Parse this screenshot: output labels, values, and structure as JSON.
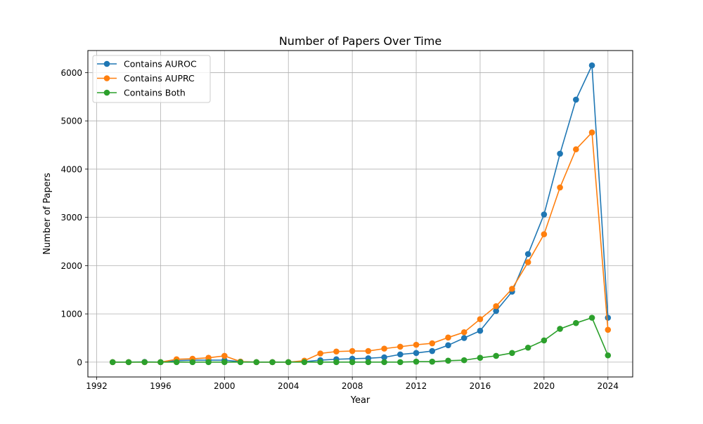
{
  "chart_data": {
    "type": "line",
    "title": "Number of Papers Over Time",
    "xlabel": "Year",
    "ylabel": "Number of Papers",
    "xlim": [
      1991.45,
      2025.55
    ],
    "ylim": [
      -307.5,
      6457.5
    ],
    "xticks": [
      1992,
      1996,
      2000,
      2004,
      2008,
      2012,
      2016,
      2020,
      2024
    ],
    "xtick_labels": [
      "1992",
      "1996",
      "2000",
      "2004",
      "2008",
      "2012",
      "2016",
      "2020",
      "2024"
    ],
    "yticks": [
      0,
      1000,
      2000,
      3000,
      4000,
      5000,
      6000
    ],
    "ytick_labels": [
      "0",
      "1000",
      "2000",
      "3000",
      "4000",
      "5000",
      "6000"
    ],
    "grid": true,
    "legend_position": "upper-left",
    "x": [
      1993,
      1994,
      1995,
      1996,
      1997,
      1998,
      1999,
      2000,
      2001,
      2002,
      2003,
      2004,
      2005,
      2006,
      2007,
      2008,
      2009,
      2010,
      2011,
      2012,
      2013,
      2014,
      2015,
      2016,
      2017,
      2018,
      2019,
      2020,
      2021,
      2022,
      2023,
      2024
    ],
    "series": [
      {
        "name": "Contains AUROC",
        "color": "#1f77b4",
        "values": [
          0,
          0,
          5,
          0,
          30,
          40,
          40,
          40,
          10,
          0,
          0,
          0,
          10,
          40,
          60,
          70,
          80,
          100,
          160,
          190,
          230,
          350,
          500,
          650,
          1060,
          1460,
          2240,
          3060,
          4320,
          5440,
          6150,
          920
        ]
      },
      {
        "name": "Contains AUPRC",
        "color": "#ff7f0e",
        "values": [
          0,
          0,
          0,
          0,
          60,
          70,
          90,
          130,
          10,
          0,
          0,
          0,
          30,
          180,
          220,
          230,
          230,
          280,
          320,
          360,
          390,
          510,
          620,
          890,
          1160,
          1520,
          2070,
          2650,
          3620,
          4410,
          4760,
          670
        ]
      },
      {
        "name": "Contains Both",
        "color": "#2ca02c",
        "values": [
          0,
          0,
          0,
          0,
          0,
          0,
          0,
          0,
          0,
          0,
          0,
          0,
          0,
          0,
          0,
          0,
          0,
          0,
          0,
          10,
          10,
          30,
          40,
          90,
          130,
          190,
          300,
          450,
          690,
          810,
          920,
          140
        ]
      }
    ]
  }
}
